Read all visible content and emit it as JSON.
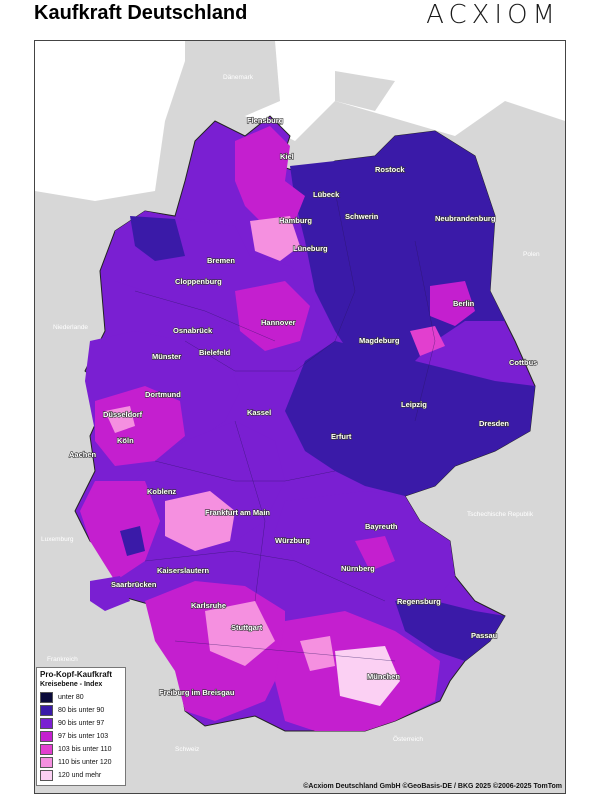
{
  "title": "Kaufkraft Deutschland",
  "logo_text": "ACXIOM",
  "legend": {
    "title": "Pro-Kopf-Kaufkraft",
    "subtitle": "Kreisebene - Index",
    "classes": [
      {
        "label": "unter 80",
        "color": "#0a0a3a"
      },
      {
        "label": "80 bis unter 90",
        "color": "#3a1aa8"
      },
      {
        "label": "90 bis unter 97",
        "color": "#7a1fd2"
      },
      {
        "label": "97 bis unter 103",
        "color": "#c41fcf"
      },
      {
        "label": "103 bis unter 110",
        "color": "#e23fcf"
      },
      {
        "label": "110 bis unter 120",
        "color": "#f590e0"
      },
      {
        "label": "120 und mehr",
        "color": "#fbd0f3"
      }
    ]
  },
  "countries": {
    "daenemark": "Dänemark",
    "niederlande": "Niederlande",
    "polen": "Polen",
    "tschechien": "Tschechische Republik",
    "luxemburg": "Luxemburg",
    "frankreich": "Frankreich",
    "schweiz": "Schweiz",
    "oesterreich": "Österreich"
  },
  "cities": {
    "flensburg": "Flensburg",
    "kiel": "Kiel",
    "luebeck": "Lübeck",
    "rostock": "Rostock",
    "schwerin": "Schwerin",
    "neubrandenburg": "Neubrandenburg",
    "hamburg": "Hamburg",
    "bremen": "Bremen",
    "lueneburg": "Lüneburg",
    "cloppenburg": "Cloppenburg",
    "berlin": "Berlin",
    "osnabrueck": "Osnabrück",
    "hannover": "Hannover",
    "muenster": "Münster",
    "bielefeld": "Bielefeld",
    "magdeburg": "Magdeburg",
    "cottbus": "Cottbus",
    "dortmund": "Dortmund",
    "duesseldorf": "Düsseldorf",
    "kassel": "Kassel",
    "leipzig": "Leipzig",
    "koeln": "Köln",
    "dresden": "Dresden",
    "aachen": "Aachen",
    "erfurt": "Erfurt",
    "koblenz": "Koblenz",
    "frankfurt": "Frankfurt am Main",
    "bayreuth": "Bayreuth",
    "wuerzburg": "Würzburg",
    "kaiserslautern": "Kaiserslautern",
    "nuernberg": "Nürnberg",
    "saarbruecken": "Saarbrücken",
    "regensburg": "Regensburg",
    "karlsruhe": "Karlsruhe",
    "stuttgart": "Stuttgart",
    "passau": "Passau",
    "muenchen": "München",
    "freiburg": "Freiburg im Breisgau"
  },
  "copyright": "©Acxiom Deutschland GmbH ©GeoBasis-DE / BKG 2025 ©2006-2025 TomTom"
}
